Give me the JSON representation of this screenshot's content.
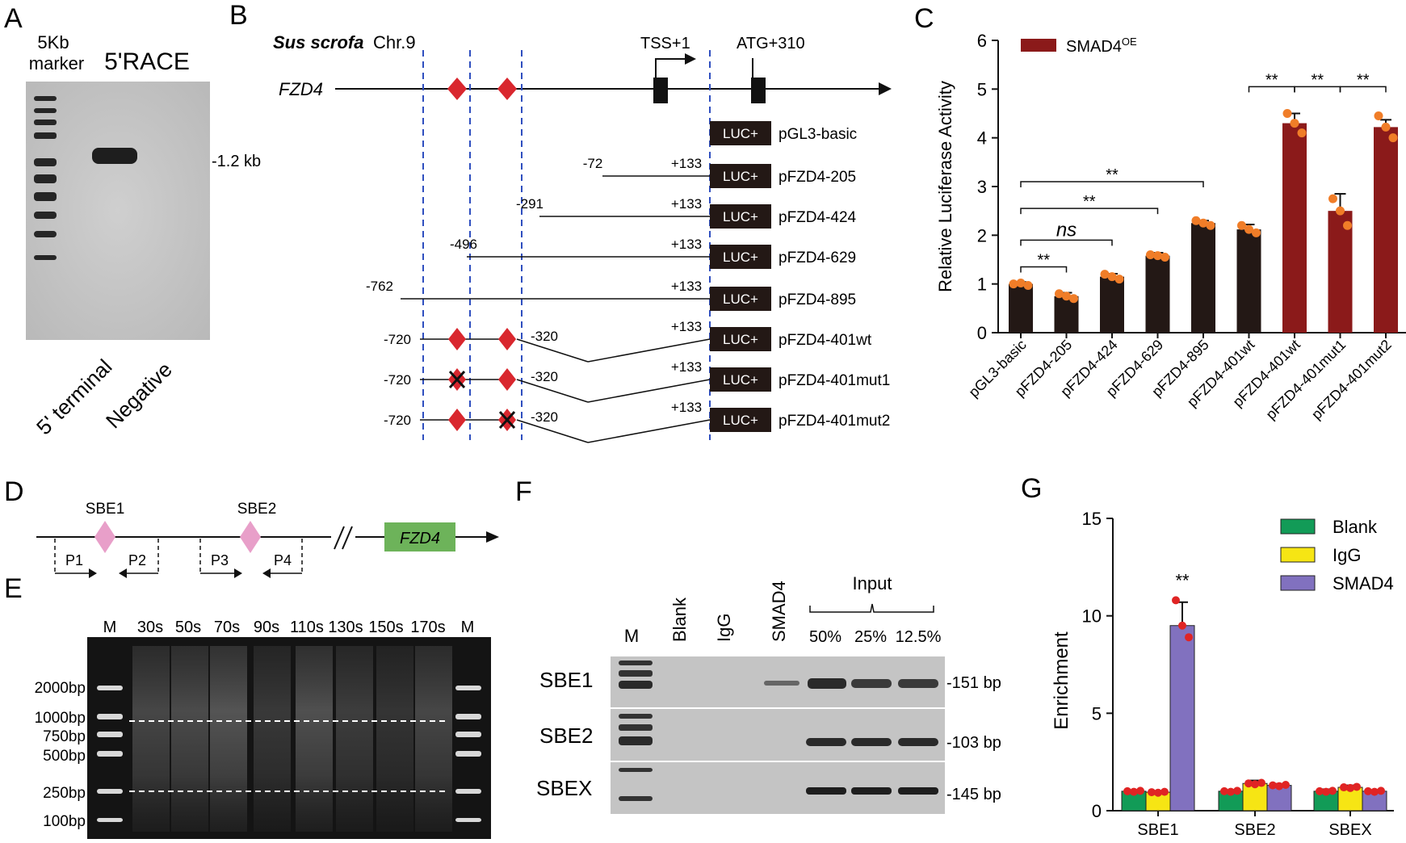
{
  "panelA": {
    "letter": "A",
    "marker_label_1": "5Kb",
    "marker_label_2": "marker",
    "race_label": "5'RACE",
    "band_size": "-1.2 kb",
    "lane1": "5' terminal",
    "lane2": "Negative"
  },
  "panelB": {
    "letter": "B",
    "species": "Sus scrofa",
    "chromosome": "Chr.9",
    "gene": "FZD4",
    "tss": "TSS+1",
    "atg": "ATG+310",
    "luc": "LUC+",
    "constructs": [
      {
        "name": "pGL3-basic",
        "start": "",
        "end": ""
      },
      {
        "name": "pFZD4-205",
        "start": "-72",
        "end": "+133"
      },
      {
        "name": "pFZD4-424",
        "start": "-291",
        "end": "+133"
      },
      {
        "name": "pFZD4-629",
        "start": "-496",
        "end": "+133"
      },
      {
        "name": "pFZD4-895",
        "start": "-762",
        "end": "+133"
      },
      {
        "name": "pFZD4-401wt",
        "start": "-720",
        "mid": "-320",
        "end": "+133"
      },
      {
        "name": "pFZD4-401mut1",
        "start": "-720",
        "mid": "-320",
        "end": "+133"
      },
      {
        "name": "pFZD4-401mut2",
        "start": "-720",
        "mid": "-320",
        "end": "+133"
      }
    ]
  },
  "panelC": {
    "letter": "C",
    "chart_data": {
      "type": "bar",
      "ylabel": "Relative Luciferase Activity",
      "ylim": [
        0,
        6
      ],
      "yticks": [
        "0",
        "1",
        "2",
        "3",
        "4",
        "5",
        "6"
      ],
      "legend": "SMAD4",
      "legend_sup": "OE",
      "categories": [
        "pGL3-basic",
        "pFZD4-205",
        "pFZD4-424",
        "pFZD4-629",
        "pFZD4-895",
        "pFZD4-401wt",
        "pFZD4-401wt",
        "pFZD4-401mut1",
        "pFZD4-401mut2"
      ],
      "values": [
        1.0,
        0.75,
        1.15,
        1.58,
        2.25,
        2.12,
        4.3,
        2.5,
        4.22
      ],
      "errors": [
        0.04,
        0.07,
        0.06,
        0.06,
        0.05,
        0.1,
        0.2,
        0.35,
        0.15
      ],
      "points": [
        [
          1.0,
          0.97,
          1.02
        ],
        [
          0.8,
          0.7,
          0.75
        ],
        [
          1.2,
          1.1,
          1.15
        ],
        [
          1.6,
          1.55,
          1.58
        ],
        [
          2.3,
          2.2,
          2.25
        ],
        [
          2.2,
          2.05,
          2.12
        ],
        [
          4.5,
          4.1,
          4.3
        ],
        [
          2.75,
          2.2,
          2.5
        ],
        [
          4.45,
          4.0,
          4.22
        ]
      ],
      "colors": [
        "#231815",
        "#231815",
        "#231815",
        "#231815",
        "#231815",
        "#231815",
        "#8b1a1a",
        "#8b1a1a",
        "#8b1a1a"
      ],
      "sig": [
        {
          "from": 0,
          "to": 1,
          "label": "**",
          "y": 1.35
        },
        {
          "from": 0,
          "to": 2,
          "label": "ns",
          "y": 1.9
        },
        {
          "from": 0,
          "to": 3,
          "label": "**",
          "y": 2.55
        },
        {
          "from": 0,
          "to": 4,
          "label": "**",
          "y": 3.1
        },
        {
          "from": 5,
          "to": 6,
          "label": "**",
          "y": 5.05
        },
        {
          "from": 6,
          "to": 7,
          "label": "**",
          "y": 5.05
        },
        {
          "from": 7,
          "to": 8,
          "label": "**",
          "y": 5.05
        }
      ]
    }
  },
  "panelD": {
    "letter": "D",
    "sbe1": "SBE1",
    "sbe2": "SBE2",
    "gene": "FZD4",
    "primers": [
      "P1",
      "P2",
      "P3",
      "P4"
    ]
  },
  "panelE": {
    "letter": "E",
    "lanes": [
      "M",
      "30s",
      "50s",
      "70s",
      "90s",
      "110s",
      "130s",
      "150s",
      "170s",
      "M"
    ],
    "markers": [
      "2000bp",
      "1000bp",
      "750bp",
      "500bp",
      "250bp",
      "100bp"
    ]
  },
  "panelF": {
    "letter": "F",
    "lanes": [
      "M",
      "Blank",
      "IgG",
      "SMAD4"
    ],
    "input_label": "Input",
    "input_lanes": [
      "50%",
      "25%",
      "12.5%"
    ],
    "rows": [
      {
        "name": "SBE1",
        "size": "-151 bp"
      },
      {
        "name": "SBE2",
        "size": "-103 bp"
      },
      {
        "name": "SBEX",
        "size": "-145 bp"
      }
    ]
  },
  "panelG": {
    "letter": "G",
    "chart_data": {
      "type": "bar",
      "ylabel": "Enrichment",
      "ylim": [
        0,
        15
      ],
      "yticks": [
        "0",
        "5",
        "10",
        "15"
      ],
      "categories": [
        "SBE1",
        "SBE2",
        "SBEX"
      ],
      "series": [
        {
          "name": "Blank",
          "color": "#129b57",
          "values": [
            1.0,
            1.0,
            1.0
          ],
          "errors": [
            0.05,
            0.05,
            0.1
          ]
        },
        {
          "name": "IgG",
          "color": "#f6e514",
          "values": [
            0.95,
            1.4,
            1.2
          ],
          "errors": [
            0.05,
            0.15,
            0.1
          ]
        },
        {
          "name": "SMAD4",
          "color": "#8171bf",
          "values": [
            9.5,
            1.3,
            1.0
          ],
          "errors": [
            1.2,
            0.08,
            0.05
          ]
        }
      ],
      "sig_label": "**"
    }
  }
}
